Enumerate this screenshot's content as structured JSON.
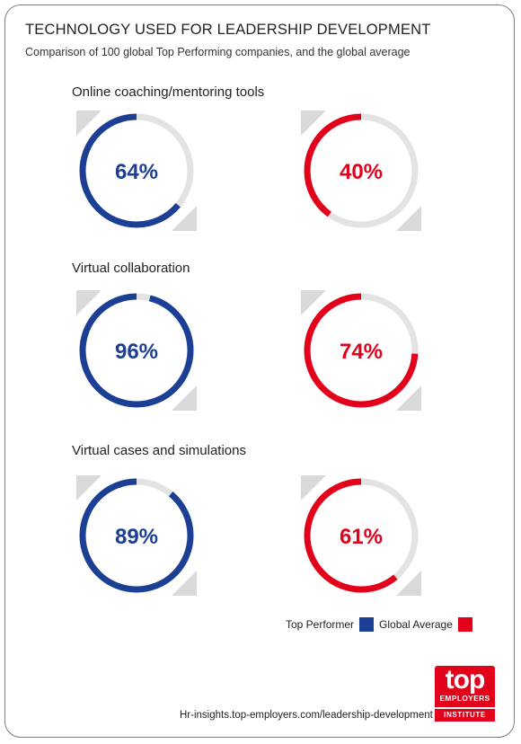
{
  "header": {
    "title": "TECHNOLOGY USED FOR LEADERSHIP DEVELOPMENT",
    "subtitle": "Comparison of 100 global Top Performing companies, and the global average"
  },
  "chart_data": {
    "type": "donut",
    "categories": [
      "Online coaching/mentoring tools",
      "Virtual collaboration",
      "Virtual cases and simulations"
    ],
    "series": [
      {
        "name": "Top Performer",
        "color": "#1b3f94",
        "values": [
          64,
          96,
          89
        ],
        "labels": [
          "64%",
          "96%",
          "89%"
        ]
      },
      {
        "name": "Global Average",
        "color": "#e2001a",
        "values": [
          40,
          74,
          61
        ],
        "labels": [
          "40%",
          "74%",
          "61%"
        ]
      }
    ],
    "unit": "%",
    "max": 100,
    "track_color": "#e3e3e3",
    "legend_position": "bottom-right"
  },
  "legend": {
    "top_performer": "Top Performer",
    "global_average": "Global Average"
  },
  "footer": {
    "url": "Hr-insights.top-employers.com/leadership-development"
  },
  "logo": {
    "word": "top",
    "line1": "EMPLOYERS",
    "line2": "INSTITUTE",
    "color": "#e2001a"
  }
}
